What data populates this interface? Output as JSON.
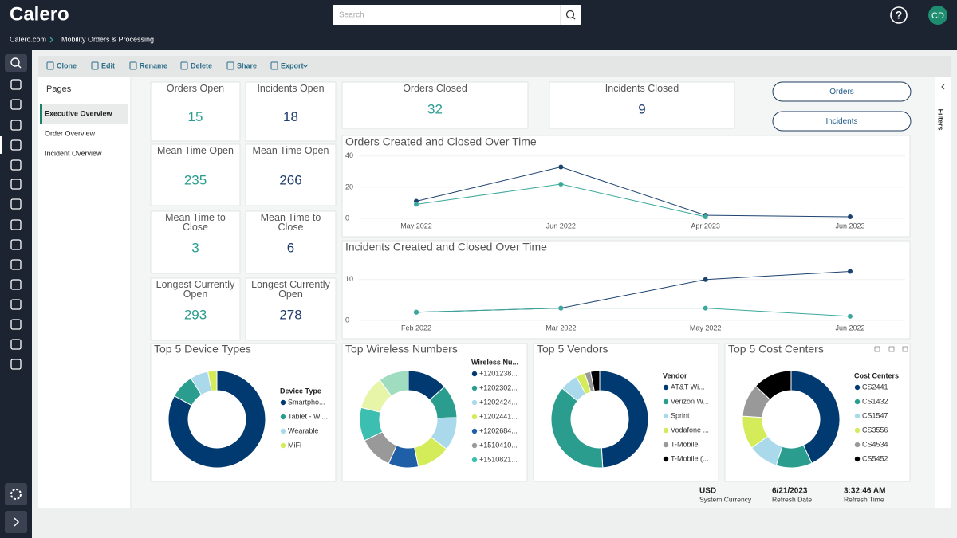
{
  "header": {
    "logo": "Calero",
    "search_placeholder": "Search",
    "help": "?",
    "avatar": "CD"
  },
  "breadcrumb": [
    "Calero.com",
    "Mobility Orders & Processing"
  ],
  "toolbar": [
    "Clone",
    "Edit",
    "Rename",
    "Delete",
    "Share",
    "Export"
  ],
  "pages": {
    "title": "Pages",
    "items": [
      "Executive Overview",
      "Order Overview",
      "Incident Overview"
    ],
    "selected": 0
  },
  "kpis": [
    {
      "label": "Orders Open",
      "value": 15,
      "color": "#2a9d8f"
    },
    {
      "label": "Incidents Open",
      "value": 18,
      "color": "#1f3b6e"
    },
    {
      "label": "Mean Time Open",
      "value": 235,
      "color": "#2a9d8f"
    },
    {
      "label": "Mean Time Open",
      "value": 266,
      "color": "#1f3b6e"
    },
    {
      "label": "Mean Time to Close",
      "value": 3,
      "color": "#2a9d8f"
    },
    {
      "label": "Mean Time to Close",
      "value": 6,
      "color": "#1f3b6e"
    },
    {
      "label": "Longest Currently Open",
      "value": 293,
      "color": "#2a9d8f"
    },
    {
      "label": "Longest Currently Open",
      "value": 278,
      "color": "#1f3b6e"
    },
    {
      "label": "Orders Closed",
      "value": 32,
      "color": "#2a9d8f"
    },
    {
      "label": "Incidents Closed",
      "value": 9,
      "color": "#1f3b6e"
    }
  ],
  "buttons": [
    "Orders",
    "Incidents"
  ],
  "filters": "Filters",
  "chart_data": [
    {
      "type": "line",
      "title": "Orders Created and Closed Over Time",
      "categories": [
        "May 2022",
        "Jun 2022",
        "Apr 2023",
        "Jun 2023"
      ],
      "series": [
        {
          "color": "#1d4370",
          "values": [
            11,
            33,
            2,
            1
          ]
        },
        {
          "color": "#3aa89b",
          "values": [
            9,
            22,
            1,
            null
          ]
        }
      ],
      "ylim": [
        0,
        44
      ],
      "yticks": [
        0,
        20,
        40
      ],
      "grid": true
    },
    {
      "type": "line",
      "title": "Incidents Created and Closed Over Time",
      "categories": [
        "Feb 2022",
        "Mar 2022",
        "May 2022",
        "Jun 2022"
      ],
      "series": [
        {
          "color": "#1d4370",
          "values": [
            2,
            3,
            10,
            12
          ]
        },
        {
          "color": "#3aa89b",
          "values": [
            2,
            3,
            3,
            1
          ]
        }
      ],
      "ylim": [
        0,
        16
      ],
      "yticks": [
        0,
        10
      ],
      "grid": true
    },
    {
      "type": "pie",
      "donut": true,
      "title": "Top 5 Device Types",
      "legend_title": "Device Type",
      "categories": [
        "Smartpho...",
        "Tablet - Wi...",
        "Wearable",
        "MiFi"
      ],
      "values": [
        83,
        8,
        6,
        3
      ],
      "colors": [
        "#003a70",
        "#2a9d8f",
        "#a9d9ea",
        "#d4ec5a"
      ]
    },
    {
      "type": "pie",
      "donut": true,
      "title": "Top Wireless Numbers",
      "legend_title": "Wireless Nu...",
      "categories": [
        "+1201238...",
        "+1202302...",
        "+1202424...",
        "+1202441...",
        "+1202684...",
        "+1510410...",
        "+1510821...",
        null,
        null
      ],
      "values": [
        12,
        10,
        10,
        10,
        9,
        10,
        10,
        10,
        9
      ],
      "colors": [
        "#003a70",
        "#2a9d8f",
        "#a9d9ea",
        "#d4ec5a",
        "#1f5fa8",
        "#999999",
        "#3cbfb0",
        "#e6f5a8",
        "#9fdcc0"
      ]
    },
    {
      "type": "pie",
      "donut": true,
      "title": "Top 5 Vendors",
      "legend_title": "Vendor",
      "categories": [
        "AT&T Wi...",
        "Verizon W...",
        "Sprint",
        "Vodafone ...",
        "T-Mobile",
        "T-Mobile (..."
      ],
      "values": [
        49,
        37,
        6,
        3,
        2,
        3
      ],
      "colors": [
        "#003a70",
        "#2a9d8f",
        "#a9d9ea",
        "#d4ec5a",
        "#999999",
        "#000000"
      ]
    },
    {
      "type": "pie",
      "donut": true,
      "title": "Top 5 Cost Centers",
      "legend_title": "Cost Centers",
      "categories": [
        "CS2441",
        "CS1432",
        "CS1547",
        "CS3556",
        "CS4534",
        "CS5452"
      ],
      "values": [
        43,
        12,
        10,
        11,
        11,
        13
      ],
      "colors": [
        "#003a70",
        "#2a9d8f",
        "#a9d9ea",
        "#d4ec5a",
        "#999999",
        "#000000"
      ]
    }
  ],
  "footer": [
    {
      "value": "USD",
      "label": "System Currency"
    },
    {
      "value": "6/21/2023",
      "label": "Refresh Date"
    },
    {
      "value": "3:32:46 AM",
      "label": "Refresh Time"
    }
  ]
}
